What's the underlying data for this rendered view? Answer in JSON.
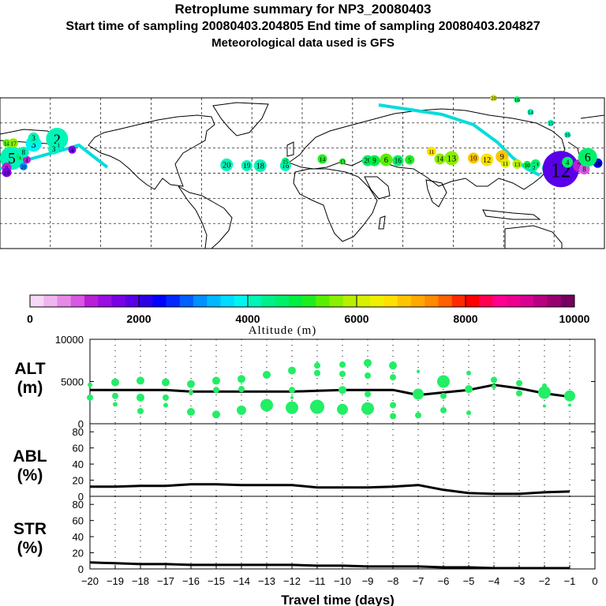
{
  "header": {
    "title": "Retroplume summary for NP3_20080403",
    "sampling": "Start time of sampling 20080403.204805     End time of sampling 20080403.204827",
    "meteo": "Meteorological data used is GFS"
  },
  "colorbar": {
    "ticks": [
      "0",
      "2000",
      "4000",
      "6000",
      "8000",
      "10000"
    ],
    "label": "Altitude (m)",
    "colors": [
      "#f7d8f7",
      "#f0b5f0",
      "#e68ae6",
      "#d957e3",
      "#b81fd6",
      "#9a0ee0",
      "#7a00e6",
      "#5a00e8",
      "#2c00e6",
      "#0000ff",
      "#0028ff",
      "#0060ff",
      "#0090ff",
      "#00b8ff",
      "#00dcff",
      "#00f5f0",
      "#00f5b8",
      "#00f08a",
      "#00f06a",
      "#00ee44",
      "#1eee1e",
      "#58f000",
      "#8aef00",
      "#b8ef00",
      "#d8ef00",
      "#f0f000",
      "#ffe000",
      "#ffc400",
      "#ffa800",
      "#ff8a00",
      "#ff6000",
      "#ff2a00",
      "#ff0000",
      "#ff0050",
      "#ff0090",
      "#ee0090",
      "#d80090",
      "#b80080",
      "#980070",
      "#760060"
    ]
  },
  "map": {
    "markers": [
      {
        "label": "20",
        "lon": -45,
        "lat": 10,
        "alt": 4000,
        "r": 8
      },
      {
        "label": "19",
        "lon": -33,
        "lat": 9,
        "alt": 4200,
        "r": 7
      },
      {
        "label": "18",
        "lon": -25,
        "lat": 9,
        "alt": 4200,
        "r": 8
      },
      {
        "label": "16",
        "lon": -10,
        "lat": 9,
        "alt": 4000,
        "r": 7
      },
      {
        "label": "15",
        "lon": -10,
        "lat": 14,
        "alt": 4300,
        "r": 5
      },
      {
        "label": "14",
        "lon": 12,
        "lat": 17,
        "alt": 5000,
        "r": 6
      },
      {
        "label": "13",
        "lon": 24,
        "lat": 14,
        "alt": 5000,
        "r": 4
      },
      {
        "label": "20",
        "lon": 39,
        "lat": 15,
        "alt": 4500,
        "r": 7
      },
      {
        "label": "9",
        "lon": 43,
        "lat": 15,
        "alt": 4800,
        "r": 7
      },
      {
        "label": "6",
        "lon": 50,
        "lat": 16,
        "alt": 5300,
        "r": 8
      },
      {
        "label": "16",
        "lon": 57,
        "lat": 15,
        "alt": 4600,
        "r": 7
      },
      {
        "label": "5",
        "lon": 64,
        "lat": 16,
        "alt": 5200,
        "r": 6
      },
      {
        "label": "11",
        "lon": 77,
        "lat": 26,
        "alt": 6700,
        "r": 6
      },
      {
        "label": "14",
        "lon": 82,
        "lat": 17,
        "alt": 5500,
        "r": 7
      },
      {
        "label": "13",
        "lon": 89,
        "lat": 18,
        "alt": 5500,
        "r": 9
      },
      {
        "label": "10",
        "lon": 102,
        "lat": 18,
        "alt": 6800,
        "r": 7
      },
      {
        "label": "12",
        "lon": 110,
        "lat": 16,
        "alt": 6600,
        "r": 8
      },
      {
        "label": "9",
        "lon": 119,
        "lat": 20,
        "alt": 6900,
        "r": 8
      },
      {
        "label": "11",
        "lon": 121,
        "lat": 12,
        "alt": 6200,
        "r": 6
      },
      {
        "label": "13",
        "lon": 128,
        "lat": 11,
        "alt": 5800,
        "r": 6
      },
      {
        "label": "10",
        "lon": 134,
        "lat": 10,
        "alt": 4800,
        "r": 5
      },
      {
        "label": "14",
        "lon": 139,
        "lat": 11,
        "alt": 4500,
        "r": 6
      },
      {
        "label": "2",
        "lon": 138,
        "lat": 7,
        "alt": 4300,
        "r": 5
      },
      {
        "label": "3",
        "lon": 145,
        "lat": 6,
        "alt": 4100,
        "r": 5
      },
      {
        "label": "12",
        "lon": 154,
        "lat": 5,
        "alt": 1900,
        "r": 23
      },
      {
        "label": "4",
        "lon": 158,
        "lat": 13,
        "alt": 4500,
        "r": 7
      },
      {
        "label": "7",
        "lon": 165,
        "lat": 9,
        "alt": 1200,
        "r": 8
      },
      {
        "label": "8",
        "lon": 168,
        "lat": 5,
        "alt": 900,
        "r": 7
      },
      {
        "label": "18",
        "lon": 176,
        "lat": 12,
        "alt": 2400,
        "r": 6
      },
      {
        "label": "6",
        "lon": 170,
        "lat": 19,
        "alt": 4700,
        "r": 12
      },
      {
        "label": "5",
        "lon": -173,
        "lat": 18,
        "alt": 4000,
        "r": 15
      },
      {
        "label": "1",
        "lon": -168,
        "lat": 20,
        "alt": 4600,
        "r": 5
      },
      {
        "label": "4",
        "lon": -164,
        "lat": 16,
        "alt": 1200,
        "r": 5
      },
      {
        "label": "8",
        "lon": -166,
        "lat": 25,
        "alt": 4100,
        "r": 7
      },
      {
        "label": "3",
        "lon": -160,
        "lat": 35,
        "alt": 3800,
        "r": 10
      },
      {
        "label": "3",
        "lon": -160,
        "lat": 42,
        "alt": 4000,
        "r": 7
      },
      {
        "label": "2",
        "lon": -146,
        "lat": 41,
        "alt": 4100,
        "r": 14
      },
      {
        "label": "3",
        "lon": -148,
        "lat": 29,
        "alt": 4000,
        "r": 7
      },
      {
        "label": "1",
        "lon": -145,
        "lat": 34,
        "alt": 4200,
        "r": 4
      },
      {
        "label": "4",
        "lon": -137,
        "lat": 28,
        "alt": 1600,
        "r": 5
      },
      {
        "label": "14",
        "lon": -176,
        "lat": 36,
        "alt": 5400,
        "r": 5
      },
      {
        "label": "17",
        "lon": -172,
        "lat": 36,
        "alt": 5500,
        "r": 6
      },
      {
        "label": "9",
        "lon": -176,
        "lat": 7,
        "alt": 1200,
        "r": 6
      },
      {
        "label": "10",
        "lon": -176,
        "lat": 1,
        "alt": 1500,
        "r": 6
      },
      {
        "label": "20",
        "lon": -166,
        "lat": 8,
        "alt": 3000,
        "r": 5
      },
      {
        "label": "20",
        "lon": 114,
        "lat": 90,
        "alt": 6000,
        "r": 4
      },
      {
        "label": "16",
        "lon": 128,
        "lat": 88,
        "alt": 4500,
        "r": 4
      },
      {
        "label": "14",
        "lon": 136,
        "lat": 73,
        "alt": 4000,
        "r": 4
      },
      {
        "label": "15",
        "lon": 148,
        "lat": 60,
        "alt": 4000,
        "r": 4
      },
      {
        "label": "16",
        "lon": 158,
        "lat": 46,
        "alt": 4200,
        "r": 4
      }
    ]
  },
  "chart_data": [
    {
      "type": "scatter",
      "panel": "ALT",
      "ylabel": "ALT\n(m)",
      "ylim": [
        0,
        10000
      ],
      "yticks": [
        "10000",
        "5000",
        "0"
      ],
      "xlim": [
        -20,
        0
      ],
      "xticks": [
        "−20",
        "−19",
        "−18",
        "−17",
        "−16",
        "−15",
        "−14",
        "−13",
        "−12",
        "−11",
        "−10",
        "−9",
        "−8",
        "−7",
        "−6",
        "−5",
        "−4",
        "−3",
        "−2",
        "−1",
        "0"
      ],
      "xlabel": "Travel time (days)",
      "series": [
        {
          "name": "median",
          "x": [
            -20,
            -19,
            -18,
            -17,
            -16,
            -15,
            -14,
            -13,
            -12,
            -11,
            -10,
            -9,
            -8,
            -7,
            -6,
            -5,
            -4,
            -3,
            -2,
            -1
          ],
          "values": [
            4000,
            4000,
            4000,
            4000,
            3800,
            3800,
            3800,
            3800,
            3800,
            3900,
            4000,
            4000,
            4000,
            3400,
            3700,
            4000,
            4600,
            4200,
            3600,
            3200
          ]
        },
        {
          "name": "particles",
          "points": [
            {
              "x": -20,
              "y": 4600,
              "r": 3
            },
            {
              "x": -20,
              "y": 3100,
              "r": 4
            },
            {
              "x": -19,
              "y": 4900,
              "r": 5
            },
            {
              "x": -19,
              "y": 3300,
              "r": 4
            },
            {
              "x": -19,
              "y": 2300,
              "r": 3
            },
            {
              "x": -18,
              "y": 5100,
              "r": 5
            },
            {
              "x": -18,
              "y": 3100,
              "r": 5
            },
            {
              "x": -18,
              "y": 1500,
              "r": 4
            },
            {
              "x": -17,
              "y": 4900,
              "r": 5
            },
            {
              "x": -17,
              "y": 3100,
              "r": 4
            },
            {
              "x": -17,
              "y": 2200,
              "r": 3
            },
            {
              "x": -16,
              "y": 4700,
              "r": 5
            },
            {
              "x": -16,
              "y": 3700,
              "r": 3
            },
            {
              "x": -16,
              "y": 1400,
              "r": 5
            },
            {
              "x": -15,
              "y": 5100,
              "r": 5
            },
            {
              "x": -15,
              "y": 4000,
              "r": 4
            },
            {
              "x": -15,
              "y": 1100,
              "r": 5
            },
            {
              "x": -14,
              "y": 5300,
              "r": 5
            },
            {
              "x": -14,
              "y": 4100,
              "r": 4
            },
            {
              "x": -14,
              "y": 1600,
              "r": 6
            },
            {
              "x": -13,
              "y": 5800,
              "r": 5
            },
            {
              "x": -13,
              "y": 2200,
              "r": 8
            },
            {
              "x": -12,
              "y": 6300,
              "r": 5
            },
            {
              "x": -12,
              "y": 4000,
              "r": 4
            },
            {
              "x": -12,
              "y": 3100,
              "r": 2
            },
            {
              "x": -12,
              "y": 1900,
              "r": 8
            },
            {
              "x": -11,
              "y": 6900,
              "r": 4
            },
            {
              "x": -11,
              "y": 6000,
              "r": 4
            },
            {
              "x": -11,
              "y": 2000,
              "r": 9
            },
            {
              "x": -10,
              "y": 7000,
              "r": 4
            },
            {
              "x": -10,
              "y": 5900,
              "r": 4
            },
            {
              "x": -10,
              "y": 4000,
              "r": 5
            },
            {
              "x": -10,
              "y": 1700,
              "r": 7
            },
            {
              "x": -9,
              "y": 7200,
              "r": 5
            },
            {
              "x": -9,
              "y": 5700,
              "r": 4
            },
            {
              "x": -9,
              "y": 3500,
              "r": 4
            },
            {
              "x": -9,
              "y": 1800,
              "r": 8
            },
            {
              "x": -8,
              "y": 6900,
              "r": 5
            },
            {
              "x": -8,
              "y": 5500,
              "r": 4
            },
            {
              "x": -8,
              "y": 2200,
              "r": 4
            },
            {
              "x": -8,
              "y": 900,
              "r": 4
            },
            {
              "x": -7,
              "y": 6200,
              "r": 2
            },
            {
              "x": -7,
              "y": 3500,
              "r": 7
            },
            {
              "x": -7,
              "y": 1000,
              "r": 4
            },
            {
              "x": -6,
              "y": 5000,
              "r": 8
            },
            {
              "x": -6,
              "y": 3300,
              "r": 4
            },
            {
              "x": -6,
              "y": 1600,
              "r": 4
            },
            {
              "x": -5,
              "y": 6000,
              "r": 3
            },
            {
              "x": -5,
              "y": 4100,
              "r": 5
            },
            {
              "x": -5,
              "y": 1300,
              "r": 3
            },
            {
              "x": -4,
              "y": 5200,
              "r": 4
            },
            {
              "x": -4,
              "y": 4400,
              "r": 3
            },
            {
              "x": -3,
              "y": 4800,
              "r": 4
            },
            {
              "x": -3,
              "y": 3600,
              "r": 4
            },
            {
              "x": -2,
              "y": 4500,
              "r": 3
            },
            {
              "x": -2,
              "y": 3700,
              "r": 8
            },
            {
              "x": -2,
              "y": 2100,
              "r": 2
            },
            {
              "x": -1,
              "y": 3300,
              "r": 7
            },
            {
              "x": -1,
              "y": 2200,
              "r": 2
            }
          ]
        }
      ]
    },
    {
      "type": "line",
      "panel": "ABL",
      "ylabel": "ABL\n(%)",
      "ylim": [
        0,
        90
      ],
      "yticks": [
        "80",
        "60",
        "40",
        "20",
        "0"
      ],
      "series": [
        {
          "name": "ABL fraction",
          "x": [
            -20,
            -19,
            -18,
            -17,
            -16,
            -15,
            -14,
            -13,
            -12,
            -11,
            -10,
            -9,
            -8,
            -7,
            -6,
            -5,
            -4,
            -3,
            -2,
            -1
          ],
          "values": [
            12,
            12,
            13,
            13,
            15,
            15,
            14,
            14,
            14,
            11,
            11,
            11,
            12,
            14,
            8,
            4,
            3,
            3,
            5,
            6
          ]
        }
      ]
    },
    {
      "type": "line",
      "panel": "STR",
      "ylabel": "STR\n(%)",
      "ylim": [
        0,
        90
      ],
      "yticks": [
        "80",
        "60",
        "40",
        "20",
        "0"
      ],
      "series": [
        {
          "name": "STR fraction",
          "x": [
            -20,
            -19,
            -18,
            -17,
            -16,
            -15,
            -14,
            -13,
            -12,
            -11,
            -10,
            -9,
            -8,
            -7,
            -6,
            -5,
            -4,
            -3,
            -2,
            -1
          ],
          "values": [
            8,
            7,
            6,
            6,
            5,
            5,
            5,
            5,
            5,
            4,
            4,
            3,
            3,
            3,
            2,
            2,
            1,
            1,
            1,
            1
          ]
        }
      ]
    }
  ]
}
